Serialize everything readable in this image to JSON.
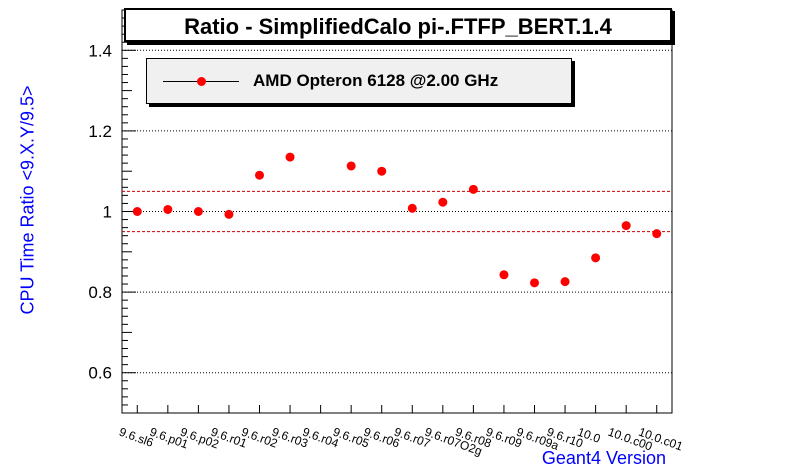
{
  "chart_data": {
    "type": "scatter",
    "title": "Ratio - SimplifiedCalo pi-.FTFP_BERT.1.4",
    "xlabel": "Geant4 Version",
    "ylabel": "CPU Time Ratio <9.X.Y/9.5>",
    "ylim": [
      0.5,
      1.5
    ],
    "yticks": [
      "0.6",
      "0.8",
      "1",
      "1.2",
      "1.4"
    ],
    "categories": [
      "9.6.sl6",
      "9.6.p01",
      "9.6.p02",
      "9.6.r01",
      "9.6.r02",
      "9.6.r03",
      "9.6.r04",
      "9.6.r05",
      "9.6.r06",
      "9.6.r07",
      "9.6.r07O2g",
      "9.6.r08",
      "9.6.r09",
      "9.6.r09a",
      "9.6.r10",
      "10.0",
      "10.0.c00",
      "10.0.c01"
    ],
    "series": [
      {
        "name": "AMD Opteron 6128 @2.00 GHz",
        "color": "#ff0000",
        "points": [
          {
            "x": "9.6.sl6",
            "y": 1.0
          },
          {
            "x": "9.6.p01",
            "y": 1.005
          },
          {
            "x": "9.6.p02",
            "y": 1.0
          },
          {
            "x": "9.6.r01",
            "y": 0.993
          },
          {
            "x": "9.6.r02",
            "y": 1.09
          },
          {
            "x": "9.6.r03",
            "y": 1.135
          },
          {
            "x": "9.6.r05",
            "y": 1.113
          },
          {
            "x": "9.6.r06",
            "y": 1.1
          },
          {
            "x": "9.6.r07",
            "y": 1.008
          },
          {
            "x": "9.6.r07O2g",
            "y": 1.023
          },
          {
            "x": "9.6.r08",
            "y": 1.055
          },
          {
            "x": "9.6.r09",
            "y": 0.843
          },
          {
            "x": "9.6.r09a",
            "y": 0.823
          },
          {
            "x": "9.6.r10",
            "y": 0.826
          },
          {
            "x": "10.0",
            "y": 0.885
          },
          {
            "x": "10.0.c00",
            "y": 0.965
          },
          {
            "x": "10.0.c01",
            "y": 0.945
          }
        ]
      }
    ],
    "reference_lines": [
      1.05,
      0.95
    ],
    "grid": "horizontal-dotted",
    "legend_position": "top-left"
  }
}
